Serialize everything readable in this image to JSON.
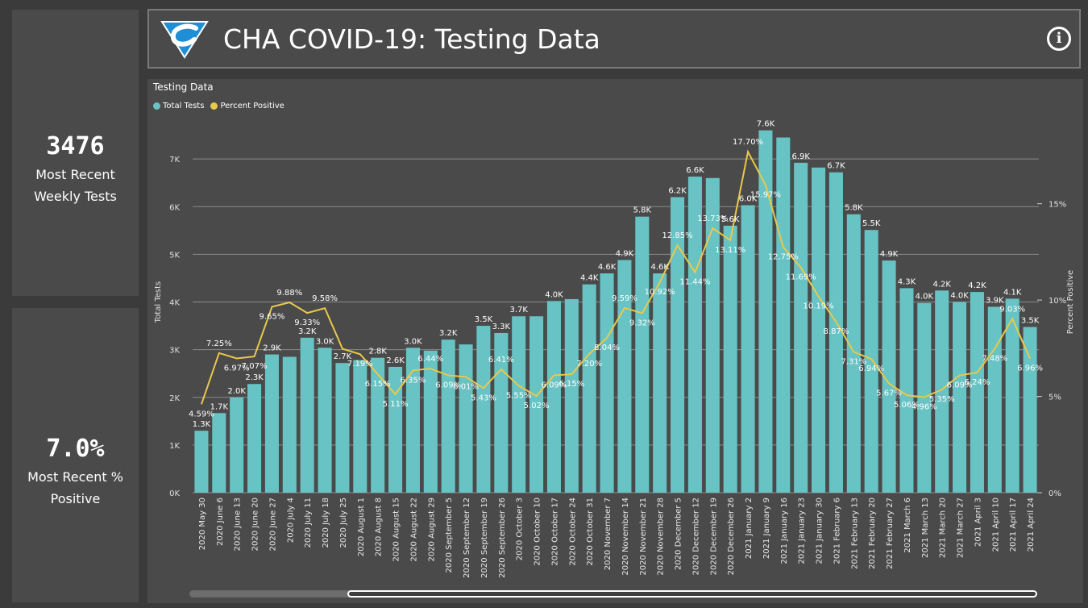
{
  "kpis": [
    {
      "value": "3476",
      "label": "Most Recent Weekly Tests"
    },
    {
      "value": "7.0%",
      "label": "Most Recent % Positive"
    }
  ],
  "header": {
    "title": "CHA COVID-19: Testing Data",
    "info_label": "i",
    "logo": "cha-logo"
  },
  "colors": {
    "bar": "#67c3c4",
    "line": "#e9c94a",
    "background": "#4a4a4a",
    "grid": "#8a8a8a"
  },
  "chart_data": {
    "type": "bar",
    "title": "Testing Data",
    "legend": [
      "Total Tests",
      "Percent Positive"
    ],
    "legend_position": "top-left",
    "ylabel": "Total Tests",
    "y2label": "Percent Positive",
    "ylim": [
      0,
      8000
    ],
    "y2lim": [
      0,
      19.8
    ],
    "yticks": [
      "0K",
      "1K",
      "2K",
      "3K",
      "4K",
      "5K",
      "6K",
      "7K"
    ],
    "y2ticks": [
      "0%",
      "5%",
      "10%",
      "15%"
    ],
    "grid": true,
    "categories": [
      "2020 May 30",
      "2020 June 6",
      "2020 June 13",
      "2020 June 20",
      "2020 June 27",
      "2020 July 4",
      "2020 July 11",
      "2020 July 18",
      "2020 July 25",
      "2020 August 1",
      "2020 August 8",
      "2020 August 15",
      "2020 August 22",
      "2020 August 29",
      "2020 September 5",
      "2020 September 12",
      "2020 September 19",
      "2020 September 26",
      "2020 October 3",
      "2020 October 10",
      "2020 October 17",
      "2020 October 24",
      "2020 October 31",
      "2020 November 7",
      "2020 November 14",
      "2020 November 21",
      "2020 November 28",
      "2020 December 5",
      "2020 December 12",
      "2020 December 19",
      "2020 December 26",
      "2021 January 2",
      "2021 January 9",
      "2021 January 16",
      "2021 January 23",
      "2021 January 30",
      "2021 February 6",
      "2021 February 13",
      "2021 February 20",
      "2021 February 27",
      "2021 March 6",
      "2021 March 13",
      "2021 March 20",
      "2021 March 27",
      "2021 April 3",
      "2021 April 10",
      "2021 April 17",
      "2021 April 24"
    ],
    "series": [
      {
        "name": "Total Tests",
        "values": [
          1300,
          1670,
          2000,
          2280,
          2900,
          2850,
          3250,
          3040,
          2720,
          2780,
          2830,
          2640,
          3040,
          2980,
          3210,
          3110,
          3500,
          3350,
          3700,
          3700,
          4020,
          4060,
          4370,
          4600,
          4880,
          5790,
          4600,
          6200,
          6630,
          6600,
          5600,
          6030,
          7600,
          7450,
          6920,
          6820,
          6720,
          5840,
          5510,
          4870,
          4290,
          3980,
          4240,
          4000,
          4210,
          3900,
          4070,
          3476
        ],
        "labels": [
          "1.3K",
          "1.7K",
          "2.0K",
          "2.3K",
          "2.9K",
          "",
          "3.2K",
          "3.0K",
          "2.7K",
          "",
          "2.8K",
          "2.6K",
          "3.0K",
          "",
          "3.2K",
          "",
          "3.5K",
          "3.3K",
          "3.7K",
          "",
          "4.0K",
          "",
          "4.4K",
          "4.6K",
          "4.9K",
          "5.8K",
          "4.6K",
          "6.2K",
          "6.6K",
          "",
          "5.6K",
          "6.0K",
          "7.6K",
          "",
          "6.9K",
          "",
          "6.7K",
          "5.8K",
          "5.5K",
          "4.9K",
          "4.3K",
          "4.0K",
          "4.2K",
          "4.0K",
          "4.2K",
          "3.9K",
          "4.1K",
          "3.5K"
        ]
      },
      {
        "name": "Percent Positive",
        "values": [
          4.59,
          7.25,
          6.97,
          7.07,
          9.65,
          9.88,
          9.33,
          9.58,
          7.47,
          7.19,
          6.15,
          5.11,
          6.35,
          6.44,
          6.09,
          6.01,
          5.43,
          6.41,
          5.55,
          5.02,
          6.09,
          6.15,
          7.2,
          8.04,
          9.59,
          9.32,
          10.92,
          12.85,
          11.44,
          13.73,
          13.11,
          17.7,
          15.97,
          12.75,
          11.69,
          10.19,
          8.87,
          7.31,
          6.94,
          5.67,
          5.06,
          4.96,
          5.35,
          6.09,
          6.24,
          7.48,
          9.03,
          6.96
        ],
        "labels": [
          "4.59%",
          "7.25%",
          "6.97%",
          "7.07%",
          "9.65%",
          "9.88%",
          "9.33%",
          "9.58%",
          "",
          "7.19%",
          "6.15%",
          "5.11%",
          "6.35%",
          "6.44%",
          "6.09%",
          "6.01%",
          "5.43%",
          "6.41%",
          "5.55%",
          "5.02%",
          "6.09%",
          "6.15%",
          "7.20%",
          "8.04%",
          "9.59%",
          "9.32%",
          "10.92%",
          "12.85%",
          "11.44%",
          "13.73%",
          "13.11%",
          "17.70%",
          "15.97%",
          "12.75%",
          "11.69%",
          "10.19%",
          "8.87%",
          "7.31%",
          "6.94%",
          "5.67%",
          "5.06%",
          "4.96%",
          "5.35%",
          "6.09%",
          "6.24%",
          "7.48%",
          "9.03%",
          "6.96%"
        ]
      }
    ]
  }
}
